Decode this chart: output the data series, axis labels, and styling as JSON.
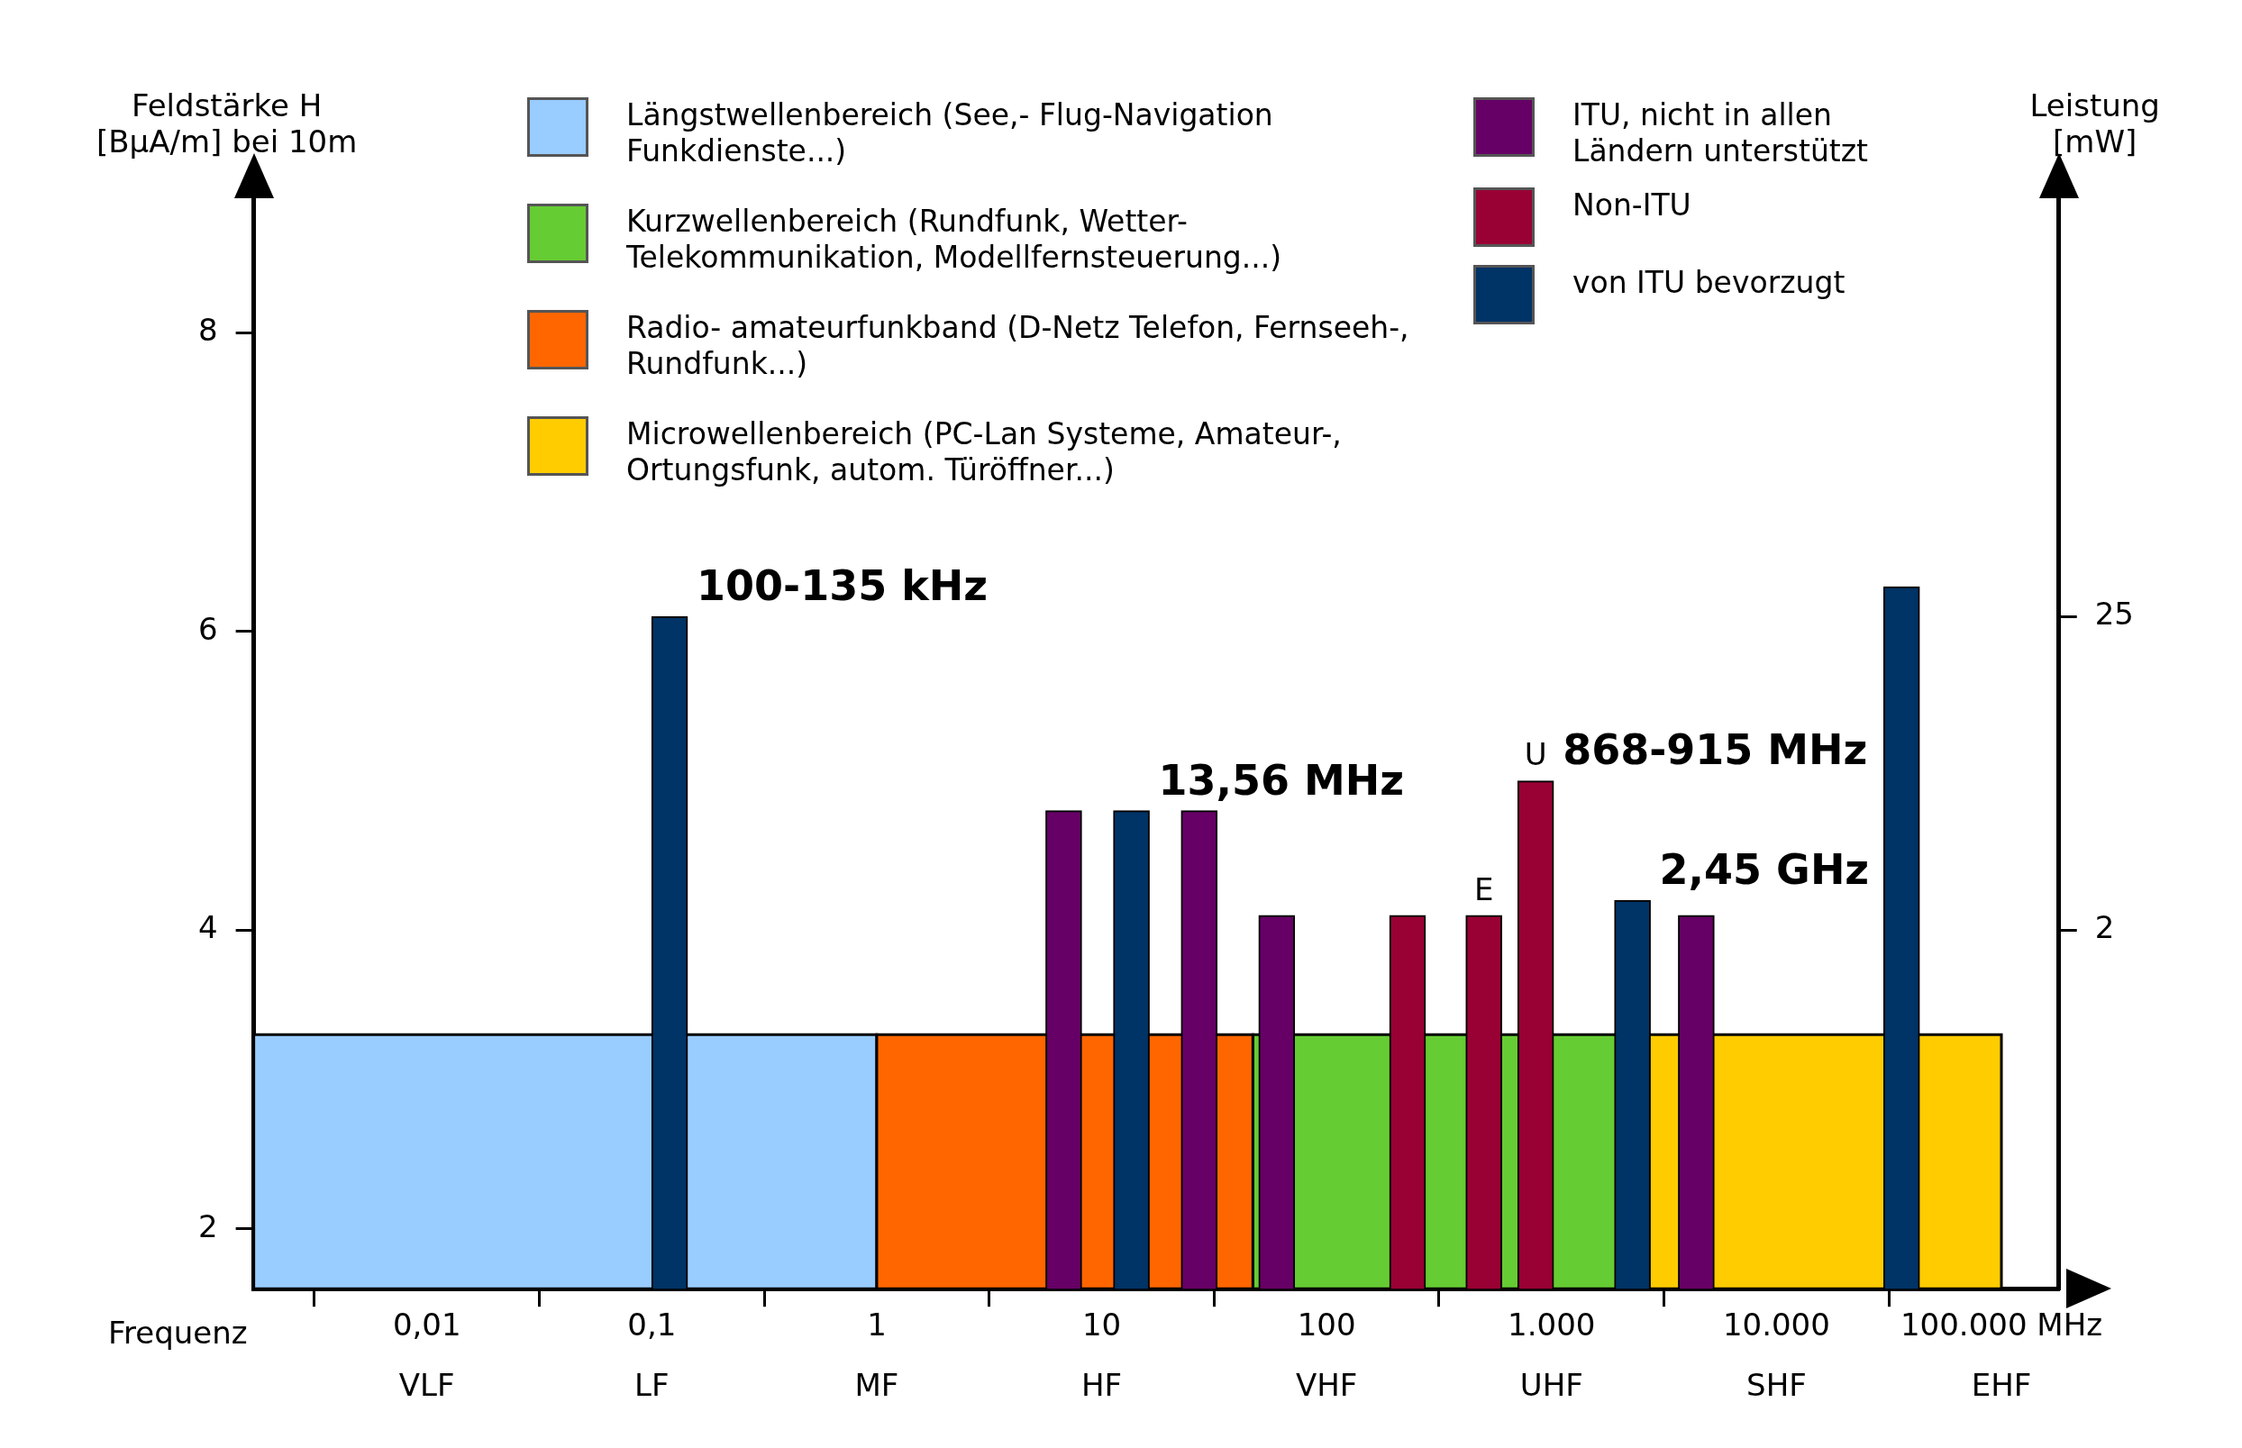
{
  "chart_data": {
    "type": "bar",
    "xlabel": "Frequenz",
    "ylabel": "Feldstärke H [BμA/m] bei 10m",
    "y2label": "Leistung [mW]",
    "log": "x",
    "xlim": [
      0.0017,
      180000
    ],
    "xticks": [
      {
        "value": 0.01,
        "label": "0,01"
      },
      {
        "value": 0.1,
        "label": "0,1"
      },
      1,
      10,
      100,
      {
        "value": 1000,
        "label": "1.000"
      },
      {
        "value": 10000,
        "label": "10.000"
      },
      {
        "value": 100000,
        "label": "100.000 MHz"
      }
    ],
    "ylim": [
      1.6,
      8.9
    ],
    "yticks": [
      2,
      4,
      6,
      8
    ],
    "y2lim": [
      -24.3,
      55.7
    ],
    "y2ticks": [
      2,
      25
    ],
    "grid": false,
    "legend": "top",
    "series": [
      {
        "name": "Längstwellenbereich (See,- Flug-Navigation Funkdienste...)",
        "type": "histogram",
        "color": "#99ccff",
        "bins": [
          0.0017,
          1
        ],
        "values": [
          3.3
        ]
      },
      {
        "name": "Kurzwellenbereich (Rundfunk, Wetter- Telekommunikation, Modellfernsteuerung...)",
        "type": "histogram",
        "color": "#66cc33",
        "bins": [
          47,
          2700
        ],
        "values": [
          3.3
        ]
      },
      {
        "name": "Radio- amateurfunkband (D-Netz Telefon, Fernseeh-, Rundfunk...)",
        "type": "histogram",
        "color": "#ff6600",
        "bins": [
          1,
          47
        ],
        "values": [
          3.3
        ]
      },
      {
        "name": "Microwellenbereich (PC-Lan Systeme, Amateur-, Ortungsfunk, autom. Türöffner...)",
        "type": "histogram",
        "color": "#ffcc00",
        "bins": [
          2700,
          100000
        ],
        "values": [
          3.3
        ]
      },
      {
        "name": "ITU, nicht in allen Ländern unterstützt",
        "color": "#660066",
        "x": [
          6.78,
          27.12,
          60,
          4400
        ],
        "values": [
          4.8,
          4.8,
          4.1,
          4.1
        ]
      },
      {
        "name": "Non-ITU",
        "color": "#990033",
        "x": [
          229,
          500,
          850
        ],
        "values": [
          4.1,
          4.1,
          5.0
        ]
      },
      {
        "name": "von ITU bevorzugt",
        "color": "#003366",
        "x": [
          0.12,
          13.56,
          2290,
          36000
        ],
        "values": [
          6.1,
          4.8,
          4.2,
          6.3
        ]
      }
    ],
    "annotations": [
      {
        "text": "100-135 kHz",
        "x": 0.12,
        "y": 6.1
      },
      {
        "text": "13,56 MHz",
        "x": 13.56,
        "y": 4.8
      },
      {
        "text": "868-915 MHz",
        "x": 850,
        "y": 5.0
      },
      {
        "text": "2,45 GHz",
        "x": 2290,
        "y": 4.2
      },
      {
        "text": "E",
        "x": 500,
        "y": 4.1
      },
      {
        "text": "U",
        "x": 850,
        "y": 5.0
      },
      "VLF",
      "LF",
      "MF",
      "HF",
      "VHF",
      "UHF",
      "SHF",
      "EHF"
    ]
  }
}
